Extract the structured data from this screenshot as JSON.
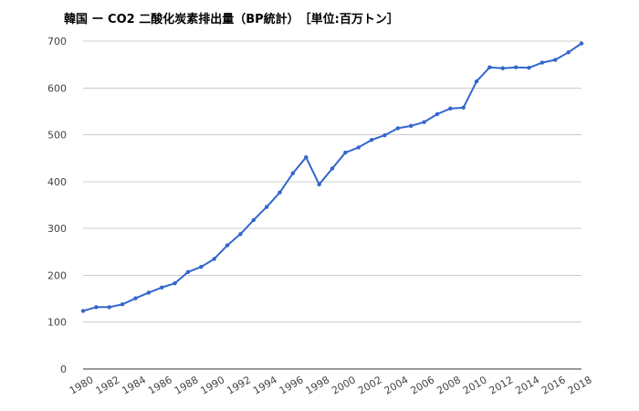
{
  "chart_data": {
    "type": "line",
    "title": "韓国 ー CO2 二酸化炭素排出量（BP統計）　［単位:百万トン］",
    "xlabel": "",
    "ylabel": "",
    "ylim": [
      0,
      700
    ],
    "xlim": [
      1980,
      2018
    ],
    "yticks": [
      "0",
      "100",
      "200",
      "300",
      "400",
      "500",
      "600",
      "700"
    ],
    "xticks": [
      "1980",
      "1982",
      "1984",
      "1986",
      "1988",
      "1990",
      "1992",
      "1994",
      "1996",
      "1998",
      "2000",
      "2002",
      "2004",
      "2006",
      "2008",
      "2010",
      "2012",
      "2014",
      "2016",
      "2018"
    ],
    "grid": true,
    "legend": "none",
    "series": [
      {
        "color": "#3366cc",
        "x": [
          1980,
          1981,
          1982,
          1983,
          1984,
          1985,
          1986,
          1987,
          1988,
          1989,
          1990,
          1991,
          1992,
          1993,
          1994,
          1995,
          1996,
          1997,
          1998,
          1999,
          2000,
          2001,
          2002,
          2003,
          2004,
          2005,
          2006,
          2007,
          2008,
          2009,
          2010,
          2011,
          2012,
          2013,
          2014,
          2015,
          2016,
          2017,
          2018
        ],
        "values": [
          124,
          132,
          132,
          138,
          151,
          163,
          174,
          183,
          207,
          218,
          235,
          264,
          288,
          318,
          346,
          377,
          418,
          452,
          394,
          428,
          462,
          473,
          489,
          499,
          514,
          519,
          527,
          544,
          556,
          558,
          614,
          644,
          642,
          644,
          643,
          654,
          660,
          676,
          695
        ]
      }
    ]
  }
}
